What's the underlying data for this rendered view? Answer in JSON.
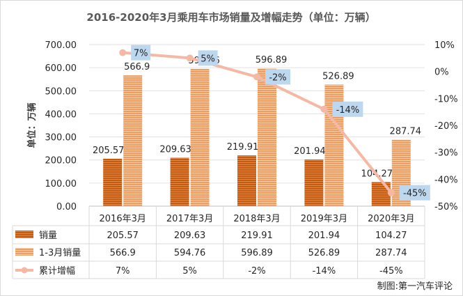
{
  "chart_data": {
    "type": "bar",
    "title": "2016-2020年3月乘用车市场销量及增幅走势（单位：万辆）",
    "ylabel": "单位：万辆",
    "categories": [
      "2016年3月",
      "2017年3月",
      "2018年3月",
      "2019年3月",
      "2020年3月"
    ],
    "ylim": [
      0,
      700
    ],
    "yticks": [
      "0.00",
      "100.00",
      "200.00",
      "300.00",
      "400.00",
      "500.00",
      "600.00",
      "700.00"
    ],
    "y2lim": [
      -50,
      10
    ],
    "y2ticks": [
      "-50%",
      "-40%",
      "-30%",
      "-20%",
      "-10%",
      "0%",
      "10%"
    ],
    "series": [
      {
        "name": "销量",
        "type": "bar",
        "values": [
          205.57,
          209.63,
          219.91,
          201.94,
          104.27
        ],
        "labels": [
          "205.57",
          "209.63",
          "219.91",
          "201.94",
          "104.27"
        ],
        "color": "#c55a11"
      },
      {
        "name": "1-3月销量",
        "type": "bar",
        "values": [
          566.9,
          594.76,
          596.89,
          526.89,
          287.74
        ],
        "labels": [
          "566.9",
          "594.76",
          "596.89",
          "526.89",
          "287.74"
        ],
        "color": "#f4b183"
      },
      {
        "name": "累计增幅",
        "type": "line",
        "axis": "right",
        "values": [
          7,
          5,
          -2,
          -14,
          -45
        ],
        "labels": [
          "7%",
          "5%",
          "-2%",
          "-14%",
          "-45%"
        ],
        "color": "#f4b8a4"
      }
    ],
    "grid": true,
    "legend": "data-table"
  },
  "credit": "制图:第一汽车评论"
}
